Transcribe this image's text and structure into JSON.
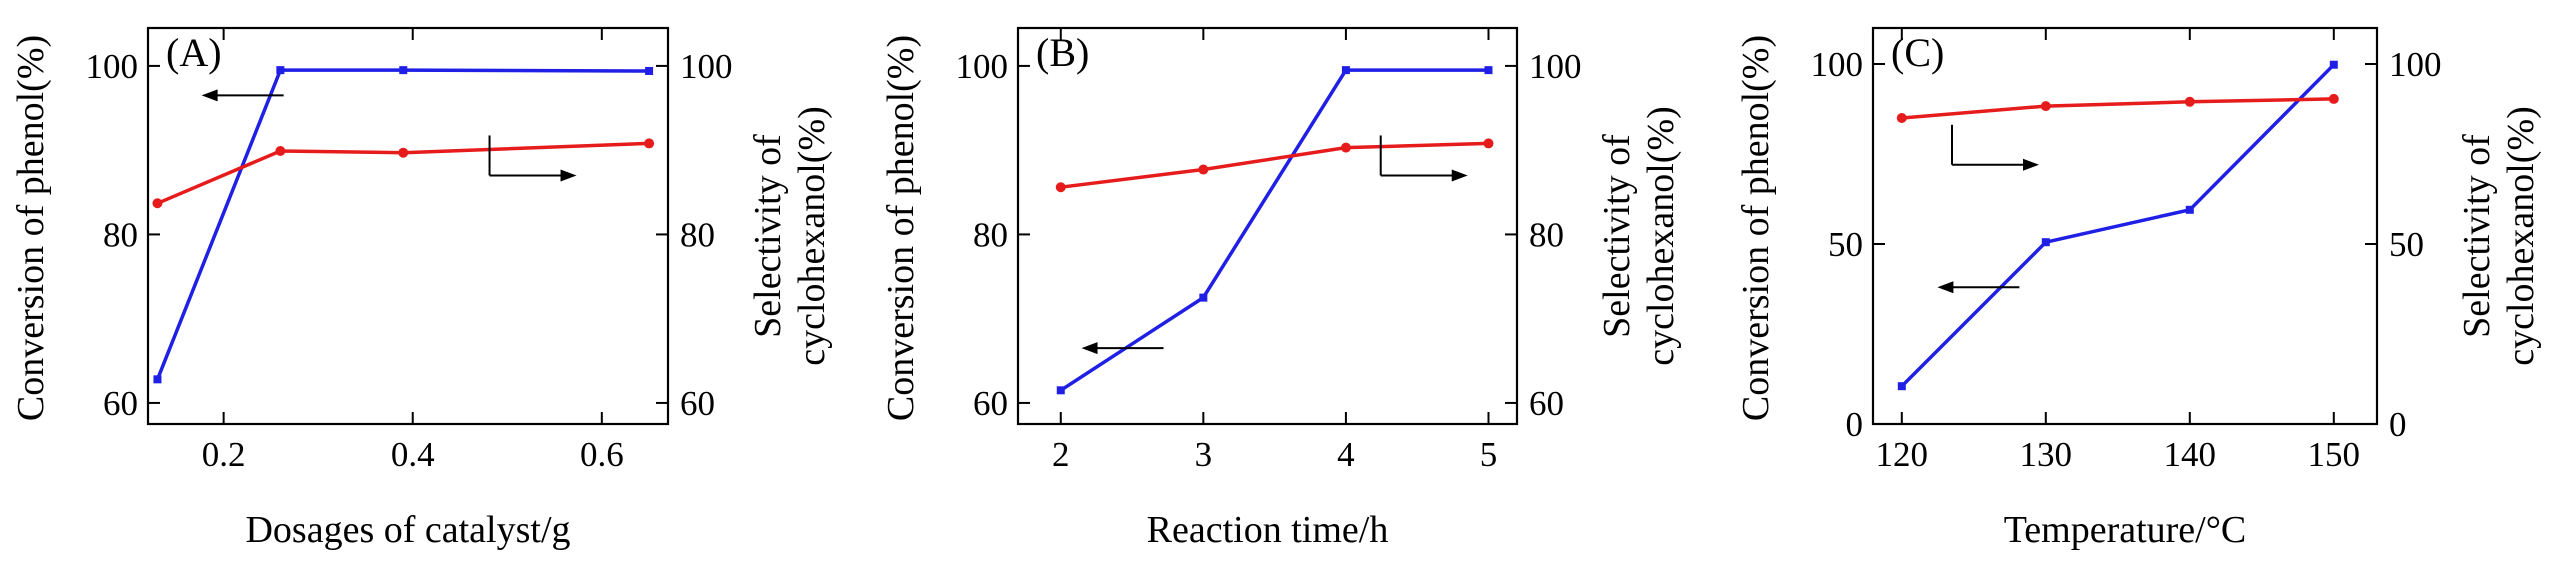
{
  "colors": {
    "conversion": "#1f1fe6",
    "selectivity": "#e61c1c",
    "axis": "#000000"
  },
  "chart_data": [
    {
      "type": "line",
      "panel_label": "(A)",
      "xlabel": "Dosages of catalyst/g",
      "ylabel_left": "Conversion of phenol(%)",
      "ylabel_right_lines": [
        "Selectivity of",
        "cyclohexanol(%)"
      ],
      "xlim": [
        0.12,
        0.67
      ],
      "ylim": [
        57.5,
        104.5
      ],
      "xticks": [
        0.2,
        0.4,
        0.6
      ],
      "xtick_labels": [
        "0.2",
        "0.4",
        "0.6"
      ],
      "yticks": [
        60,
        80,
        100
      ],
      "ytick_labels": [
        "60",
        "80",
        "100"
      ],
      "ytick_labels_right": [
        "60",
        "80",
        "100"
      ],
      "series": [
        {
          "name": "Conversion of phenol",
          "color_key": "conversion",
          "x": [
            0.13,
            0.26,
            0.39,
            0.65
          ],
          "y": [
            62.8,
            99.5,
            99.5,
            99.4
          ]
        },
        {
          "name": "Selectivity of cyclohexanol",
          "color_key": "selectivity",
          "x": [
            0.13,
            0.26,
            0.39,
            0.65
          ],
          "y": [
            83.7,
            89.9,
            89.7,
            90.8
          ]
        }
      ],
      "annotations": [
        {
          "text": "←",
          "series": "Conversion of phenol",
          "direction": "left",
          "near": {
            "x": 0.2,
            "y": 96.5
          }
        },
        {
          "text": "→",
          "series": "Selectivity of cyclohexanol",
          "direction": "right",
          "near": {
            "x": 0.55,
            "y": 87
          }
        }
      ]
    },
    {
      "type": "line",
      "panel_label": "(B)",
      "xlabel": "Reaction time/h",
      "ylabel_left": "Conversion of phenol(%)",
      "ylabel_right_lines": [
        "Selectivity of",
        "cyclohexanol(%)"
      ],
      "xlim": [
        1.7,
        5.2
      ],
      "ylim": [
        57.5,
        104.5
      ],
      "xticks": [
        2,
        3,
        4,
        5
      ],
      "xtick_labels": [
        "2",
        "3",
        "4",
        "5"
      ],
      "yticks": [
        60,
        80,
        100
      ],
      "ytick_labels": [
        "60",
        "80",
        "100"
      ],
      "ytick_labels_right": [
        "60",
        "80",
        "100"
      ],
      "series": [
        {
          "name": "Conversion of phenol",
          "color_key": "conversion",
          "x": [
            2,
            3,
            4,
            5
          ],
          "y": [
            61.5,
            72.5,
            99.5,
            99.5
          ]
        },
        {
          "name": "Selectivity of cyclohexanol",
          "color_key": "selectivity",
          "x": [
            2,
            3,
            4,
            5
          ],
          "y": [
            85.6,
            87.7,
            90.3,
            90.8
          ]
        }
      ],
      "annotations": [
        {
          "text": "←",
          "series": "Conversion of phenol",
          "direction": "left",
          "near": {
            "x": 2.3,
            "y": 66.5
          }
        },
        {
          "text": "→",
          "series": "Selectivity of cyclohexanol",
          "direction": "right",
          "near": {
            "x": 4.7,
            "y": 87
          }
        }
      ]
    },
    {
      "type": "line",
      "panel_label": "(C)",
      "xlabel": "Temperature/°C",
      "ylabel_left": "Conversion of phenol(%)",
      "ylabel_right_lines": [
        "Selectivity of",
        "cyclohexanol(%)"
      ],
      "xlim": [
        118,
        153
      ],
      "ylim": [
        0,
        110
      ],
      "xticks": [
        120,
        130,
        140,
        150
      ],
      "xtick_labels": [
        "120",
        "130",
        "140",
        "150"
      ],
      "yticks": [
        0,
        50,
        100
      ],
      "ytick_labels": [
        "0",
        "50",
        "100"
      ],
      "ytick_labels_right": [
        "0",
        "50",
        "100"
      ],
      "series": [
        {
          "name": "Conversion of phenol",
          "color_key": "conversion",
          "x": [
            120,
            130,
            140,
            150
          ],
          "y": [
            10.5,
            50.5,
            59.5,
            99.8
          ]
        },
        {
          "name": "Selectivity of cyclohexanol",
          "color_key": "selectivity",
          "x": [
            120,
            130,
            140,
            150
          ],
          "y": [
            85,
            88.3,
            89.5,
            90.3
          ]
        }
      ],
      "annotations": [
        {
          "text": "←",
          "series": "Conversion of phenol",
          "direction": "left",
          "near": {
            "x": 124,
            "y": 38
          }
        },
        {
          "text": "→",
          "series": "Selectivity of cyclohexanol",
          "direction": "right",
          "near": {
            "x": 128,
            "y": 72
          }
        }
      ]
    }
  ]
}
